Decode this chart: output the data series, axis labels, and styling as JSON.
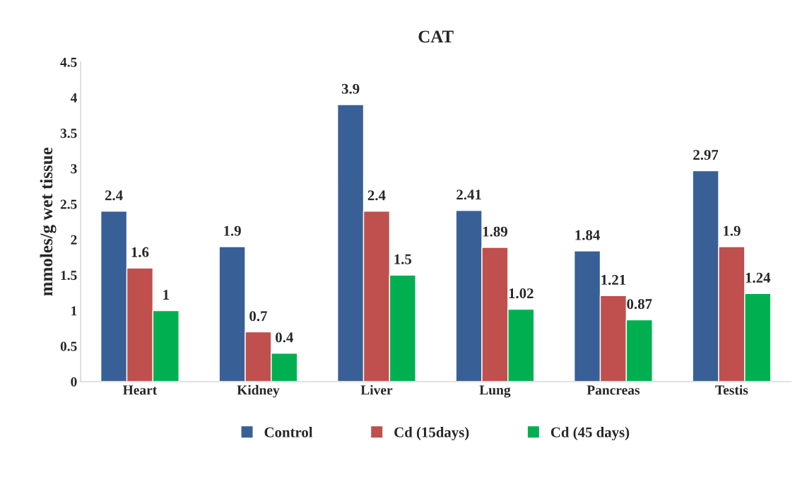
{
  "chart_data": {
    "type": "bar",
    "title": "CAT",
    "ylabel": "mmoles/g wet tissue",
    "categories": [
      "Heart",
      "Kidney",
      "Liver",
      "Lung",
      "Pancreas",
      "Testis"
    ],
    "series": [
      {
        "name": "Control",
        "color": "#386096",
        "values": [
          2.4,
          1.9,
          3.9,
          2.41,
          1.84,
          2.97
        ]
      },
      {
        "name": "Cd (15days)",
        "color": "#c0504d",
        "values": [
          1.6,
          0.7,
          2.4,
          1.89,
          1.21,
          1.9
        ]
      },
      {
        "name": "Cd (45 days)",
        "color": "#00b050",
        "values": [
          1,
          0.4,
          1.5,
          1.02,
          0.87,
          1.24
        ]
      }
    ],
    "ylim": [
      0,
      4.5
    ],
    "yticks": [
      0,
      0.5,
      1,
      1.5,
      2,
      2.5,
      3,
      3.5,
      4,
      4.5
    ],
    "data_labels": true,
    "grid": false,
    "legend": "bottom"
  }
}
